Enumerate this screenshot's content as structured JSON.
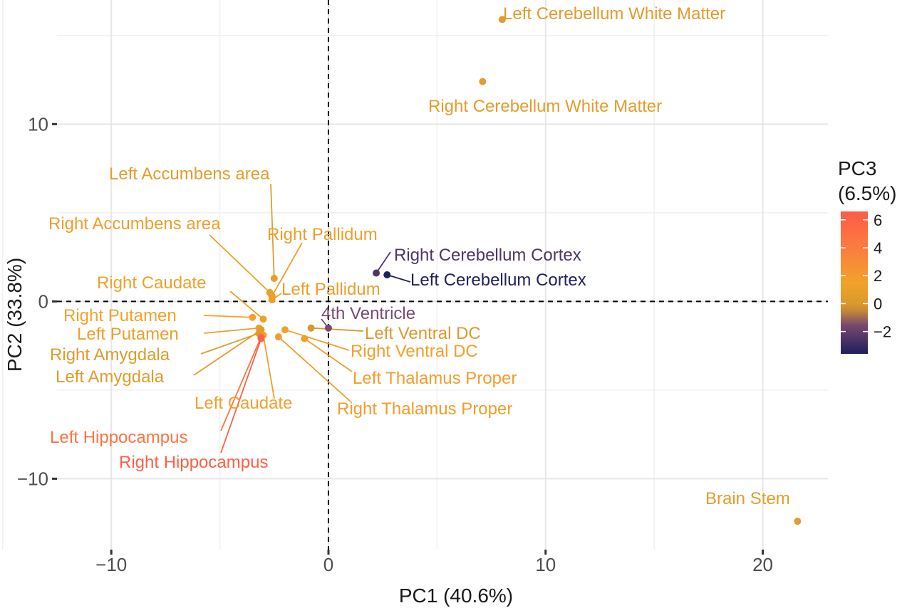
{
  "chart_data": {
    "type": "scatter",
    "title": "",
    "xlabel": "PC1 (40.6%)",
    "ylabel": "PC2 (33.8%)",
    "xlim": [
      -12.5,
      23
    ],
    "ylim": [
      -14,
      17
    ],
    "xticks": [
      -10,
      0,
      10,
      20
    ],
    "xtick_labels": [
      "−10",
      "0",
      "10",
      "20"
    ],
    "yticks": [
      -10,
      0,
      10
    ],
    "ytick_labels": [
      "−10",
      "0",
      "10"
    ],
    "grid": true,
    "reference_lines": {
      "x": 0,
      "y": 0,
      "style": "dashed"
    },
    "colorbar": {
      "title_line1": "PC3",
      "title_line2": "(6.5%)",
      "range": [
        -3.6,
        6.6
      ],
      "ticks": [
        6,
        4,
        2,
        0,
        -2
      ],
      "tick_labels": [
        "6",
        "4",
        "2",
        "0",
        "−2"
      ],
      "colors": [
        "#1d1f5e",
        "#7a4a6e",
        "#e6a12a",
        "#f2a62a",
        "#fb7a40",
        "#ff5b47"
      ],
      "placement": "right"
    },
    "points": [
      {
        "label": "Left Cerebellum White Matter",
        "x": 8.0,
        "y": 15.9,
        "pc3": 0.5
      },
      {
        "label": "Right Cerebellum White Matter",
        "x": 7.1,
        "y": 12.4,
        "pc3": 0.6
      },
      {
        "label": "Left Accumbens area",
        "x": -2.5,
        "y": 1.3,
        "pc3": 0.7
      },
      {
        "label": "Right Accumbens area",
        "x": -2.7,
        "y": 0.5,
        "pc3": 1.2
      },
      {
        "label": "Right Pallidum",
        "x": -2.6,
        "y": 0.3,
        "pc3": 1.1
      },
      {
        "label": "Left Pallidum",
        "x": -2.6,
        "y": 0.1,
        "pc3": 1.0
      },
      {
        "label": "Right Cerebellum Cortex",
        "x": 2.2,
        "y": 1.6,
        "pc3": -2.5
      },
      {
        "label": "Left Cerebellum Cortex",
        "x": 2.7,
        "y": 1.5,
        "pc3": -3.5
      },
      {
        "label": "Right Caudate",
        "x": -3.0,
        "y": -1.0,
        "pc3": 1.3
      },
      {
        "label": "Right Putamen",
        "x": -3.5,
        "y": -0.9,
        "pc3": 1.5
      },
      {
        "label": "Left Putamen",
        "x": -3.2,
        "y": -1.5,
        "pc3": 1.2
      },
      {
        "label": "Right Amygdala",
        "x": -3.2,
        "y": -1.8,
        "pc3": 0.3
      },
      {
        "label": "Left Amygdala",
        "x": -3.1,
        "y": -1.6,
        "pc3": 0.5
      },
      {
        "label": "Left Caudate",
        "x": -3.0,
        "y": -1.9,
        "pc3": 1.6
      },
      {
        "label": "Left Hippocampus",
        "x": -3.1,
        "y": -2.0,
        "pc3": 4.6
      },
      {
        "label": "Right Hippocampus",
        "x": -3.1,
        "y": -2.1,
        "pc3": 6.2
      },
      {
        "label": "4th Ventricle",
        "x": 0.0,
        "y": -1.5,
        "pc3": -1.5
      },
      {
        "label": "Left Ventral DC",
        "x": -0.8,
        "y": -1.5,
        "pc3": 0.1
      },
      {
        "label": "Right Ventral DC",
        "x": -2.0,
        "y": -1.6,
        "pc3": 1.7
      },
      {
        "label": "Left Thalamus Proper",
        "x": -1.1,
        "y": -2.1,
        "pc3": 1.8
      },
      {
        "label": "Right Thalamus Proper",
        "x": -2.3,
        "y": -2.0,
        "pc3": 1.9
      },
      {
        "label": "Brain Stem",
        "x": 21.6,
        "y": -12.4,
        "pc3": 0.6
      }
    ]
  }
}
